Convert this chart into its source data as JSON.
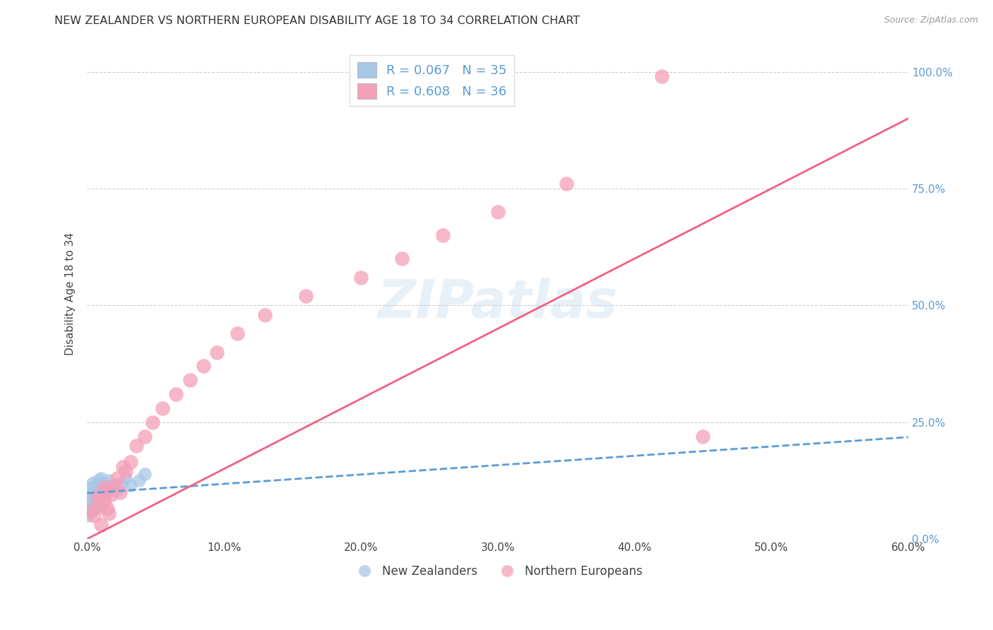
{
  "title": "NEW ZEALANDER VS NORTHERN EUROPEAN DISABILITY AGE 18 TO 34 CORRELATION CHART",
  "source": "Source: ZipAtlas.com",
  "ylabel": "Disability Age 18 to 34",
  "xlim": [
    0,
    0.6
  ],
  "ylim": [
    0,
    1.05
  ],
  "xtick_labels": [
    "0.0%",
    "10.0%",
    "20.0%",
    "30.0%",
    "40.0%",
    "50.0%",
    "60.0%"
  ],
  "xtick_vals": [
    0,
    0.1,
    0.2,
    0.3,
    0.4,
    0.5,
    0.6
  ],
  "ytick_labels_right": [
    "0.0%",
    "25.0%",
    "50.0%",
    "75.0%",
    "100.0%"
  ],
  "ytick_vals": [
    0,
    0.25,
    0.5,
    0.75,
    1.0
  ],
  "nz_R": 0.067,
  "nz_N": 35,
  "ne_R": 0.608,
  "ne_N": 36,
  "legend_label1": "New Zealanders",
  "legend_label2": "Northern Europeans",
  "watermark": "ZIPatlas",
  "blue_color": "#a8c8e8",
  "pink_color": "#f4a0b8",
  "blue_line_color": "#5b9bd5",
  "pink_line_color": "#f06080",
  "nz_x": [
    0.001,
    0.002,
    0.002,
    0.003,
    0.003,
    0.003,
    0.004,
    0.004,
    0.004,
    0.005,
    0.005,
    0.005,
    0.006,
    0.006,
    0.007,
    0.007,
    0.008,
    0.008,
    0.009,
    0.009,
    0.01,
    0.01,
    0.011,
    0.012,
    0.013,
    0.015,
    0.016,
    0.018,
    0.02,
    0.022,
    0.025,
    0.028,
    0.032,
    0.038,
    0.042
  ],
  "nz_y": [
    0.05,
    0.07,
    0.09,
    0.06,
    0.08,
    0.11,
    0.075,
    0.095,
    0.12,
    0.065,
    0.085,
    0.105,
    0.07,
    0.1,
    0.08,
    0.115,
    0.09,
    0.125,
    0.075,
    0.11,
    0.095,
    0.13,
    0.105,
    0.115,
    0.12,
    0.1,
    0.125,
    0.11,
    0.115,
    0.105,
    0.12,
    0.13,
    0.115,
    0.125,
    0.14
  ],
  "ne_x": [
    0.003,
    0.005,
    0.007,
    0.009,
    0.01,
    0.011,
    0.012,
    0.013,
    0.014,
    0.015,
    0.016,
    0.018,
    0.02,
    0.022,
    0.024,
    0.026,
    0.028,
    0.032,
    0.036,
    0.042,
    0.048,
    0.055,
    0.065,
    0.075,
    0.085,
    0.095,
    0.11,
    0.13,
    0.16,
    0.2,
    0.23,
    0.26,
    0.3,
    0.35,
    0.42,
    0.45
  ],
  "ne_y": [
    0.06,
    0.05,
    0.09,
    0.07,
    0.03,
    0.085,
    0.11,
    0.08,
    0.1,
    0.065,
    0.055,
    0.095,
    0.115,
    0.13,
    0.1,
    0.155,
    0.145,
    0.165,
    0.2,
    0.22,
    0.25,
    0.28,
    0.31,
    0.34,
    0.37,
    0.4,
    0.44,
    0.48,
    0.52,
    0.56,
    0.6,
    0.65,
    0.7,
    0.76,
    0.99,
    0.22
  ],
  "nz_line_x": [
    0.0,
    0.6
  ],
  "nz_line_y": [
    0.098,
    0.218
  ],
  "ne_line_x": [
    0.0,
    0.6
  ],
  "ne_line_y": [
    0.0,
    0.9
  ]
}
